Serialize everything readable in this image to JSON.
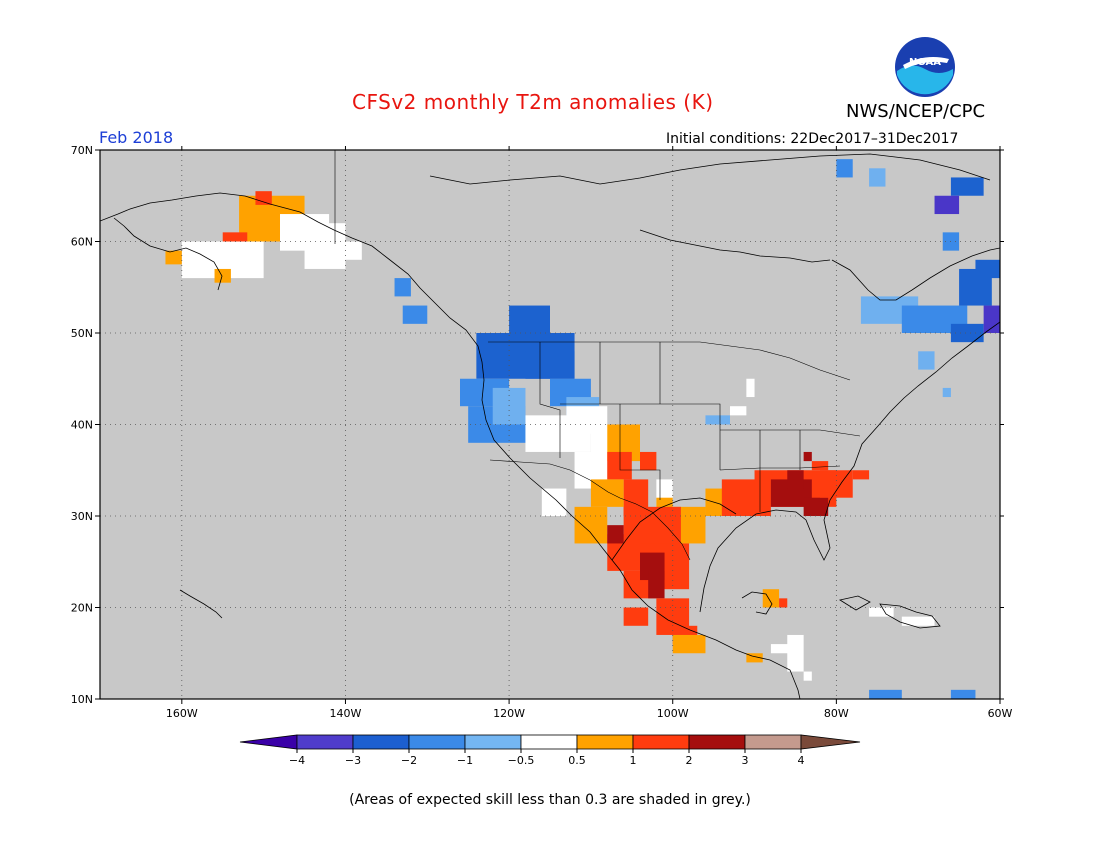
{
  "header": {
    "title": "CFSv2 monthly T2m anomalies (K)",
    "agency": "NWS/NCEP/CPC",
    "period": "Feb 2018",
    "initial_conditions": "Initial conditions: 22Dec2017–31Dec2017",
    "logo_text": "NOAA"
  },
  "footer": {
    "note": "(Areas of expected skill less than 0.3 are shaded in grey.)"
  },
  "map": {
    "lon_range": [
      -170,
      -60
    ],
    "lat_range": [
      10,
      70
    ],
    "lon_ticks": [
      "160W",
      "140W",
      "120W",
      "100W",
      "80W",
      "60W"
    ],
    "lat_ticks": [
      "70N",
      "60N",
      "50N",
      "40N",
      "30N",
      "20N",
      "10N"
    ],
    "colors": {
      "no_skill": "#c8c8c8",
      "neutral": "#ffffff",
      "b1": "#6fb0ef",
      "b2": "#3b8ae8",
      "b3": "#1c62cf",
      "b4": "#4a36c8",
      "w1": "#ffa200",
      "w2": "#ff3c0f",
      "w3": "#a50e0e"
    }
  },
  "colorbar": {
    "labels": [
      "-4",
      "-3",
      "-2",
      "-1",
      "-0.5",
      "0.5",
      "1",
      "2",
      "3",
      "4"
    ],
    "colors": [
      "#3a00a8",
      "#4f3ccb",
      "#1c5fd0",
      "#3b8ae8",
      "#74b6f2",
      "#ffffff",
      "#ffa200",
      "#ff3c0f",
      "#a50e0e",
      "#c49a8e",
      "#7a4a3a"
    ]
  }
}
